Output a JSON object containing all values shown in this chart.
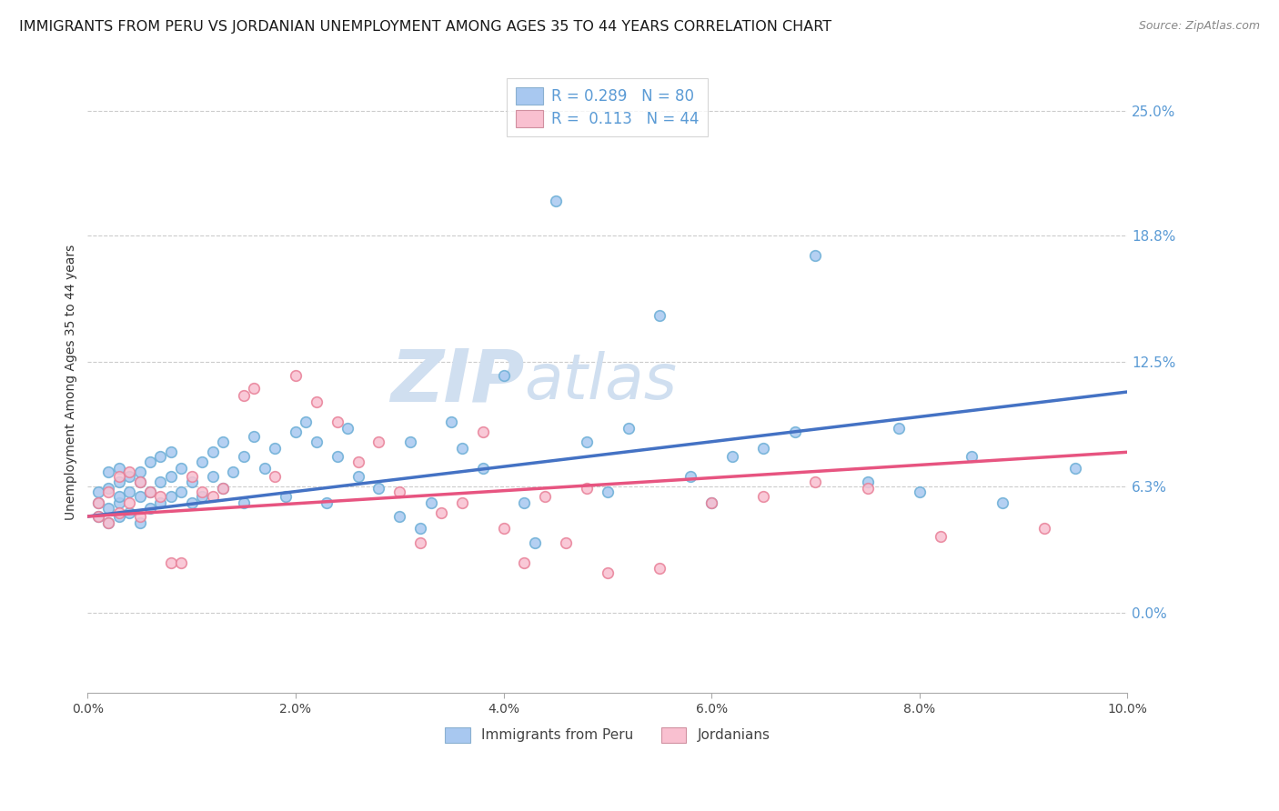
{
  "title": "IMMIGRANTS FROM PERU VS JORDANIAN UNEMPLOYMENT AMONG AGES 35 TO 44 YEARS CORRELATION CHART",
  "source": "Source: ZipAtlas.com",
  "ylabel": "Unemployment Among Ages 35 to 44 years",
  "xlim": [
    0.0,
    0.1
  ],
  "ylim": [
    -0.04,
    0.27
  ],
  "xticks": [
    0.0,
    0.02,
    0.04,
    0.06,
    0.08,
    0.1
  ],
  "xtick_labels": [
    "0.0%",
    "2.0%",
    "4.0%",
    "6.0%",
    "8.0%",
    "10.0%"
  ],
  "yticks_right": [
    0.0,
    0.063,
    0.125,
    0.188,
    0.25
  ],
  "ytick_labels_right": [
    "0.0%",
    "6.3%",
    "12.5%",
    "18.8%",
    "25.0%"
  ],
  "right_axis_color": "#5b9bd5",
  "watermark_zip": "ZIP",
  "watermark_atlas": "atlas",
  "watermark_color": "#d0dff0",
  "background_color": "#ffffff",
  "grid_color": "#cccccc",
  "title_color": "#1a1a1a",
  "title_fontsize": 11.5,
  "series_blue": {
    "dot_color": "#a8c8f0",
    "dot_edge_color": "#6baed6",
    "trend_color": "#4472c4",
    "scatter_x": [
      0.001,
      0.001,
      0.001,
      0.002,
      0.002,
      0.002,
      0.002,
      0.003,
      0.003,
      0.003,
      0.003,
      0.003,
      0.004,
      0.004,
      0.004,
      0.005,
      0.005,
      0.005,
      0.005,
      0.006,
      0.006,
      0.006,
      0.007,
      0.007,
      0.007,
      0.008,
      0.008,
      0.008,
      0.009,
      0.009,
      0.01,
      0.01,
      0.011,
      0.011,
      0.012,
      0.012,
      0.013,
      0.013,
      0.014,
      0.015,
      0.015,
      0.016,
      0.017,
      0.018,
      0.019,
      0.02,
      0.021,
      0.022,
      0.023,
      0.024,
      0.025,
      0.026,
      0.028,
      0.03,
      0.031,
      0.032,
      0.033,
      0.035,
      0.036,
      0.038,
      0.04,
      0.042,
      0.043,
      0.045,
      0.048,
      0.05,
      0.052,
      0.055,
      0.058,
      0.06,
      0.062,
      0.065,
      0.068,
      0.07,
      0.075,
      0.078,
      0.08,
      0.085,
      0.088,
      0.095
    ],
    "scatter_y": [
      0.048,
      0.055,
      0.06,
      0.045,
      0.052,
      0.062,
      0.07,
      0.048,
      0.055,
      0.065,
      0.058,
      0.072,
      0.05,
      0.06,
      0.068,
      0.045,
      0.058,
      0.07,
      0.065,
      0.052,
      0.06,
      0.075,
      0.055,
      0.065,
      0.078,
      0.058,
      0.068,
      0.08,
      0.06,
      0.072,
      0.055,
      0.065,
      0.058,
      0.075,
      0.068,
      0.08,
      0.062,
      0.085,
      0.07,
      0.078,
      0.055,
      0.088,
      0.072,
      0.082,
      0.058,
      0.09,
      0.095,
      0.085,
      0.055,
      0.078,
      0.092,
      0.068,
      0.062,
      0.048,
      0.085,
      0.042,
      0.055,
      0.095,
      0.082,
      0.072,
      0.118,
      0.055,
      0.035,
      0.205,
      0.085,
      0.06,
      0.092,
      0.148,
      0.068,
      0.055,
      0.078,
      0.082,
      0.09,
      0.178,
      0.065,
      0.092,
      0.06,
      0.078,
      0.055,
      0.072
    ],
    "trend_x": [
      0.0,
      0.1
    ],
    "trend_y": [
      0.048,
      0.11
    ]
  },
  "series_pink": {
    "dot_color": "#f9c0d0",
    "dot_edge_color": "#e88098",
    "trend_color": "#e75480",
    "scatter_x": [
      0.001,
      0.001,
      0.002,
      0.002,
      0.003,
      0.003,
      0.004,
      0.004,
      0.005,
      0.005,
      0.006,
      0.007,
      0.008,
      0.009,
      0.01,
      0.011,
      0.012,
      0.013,
      0.015,
      0.016,
      0.018,
      0.02,
      0.022,
      0.024,
      0.026,
      0.028,
      0.03,
      0.032,
      0.034,
      0.036,
      0.038,
      0.04,
      0.042,
      0.044,
      0.046,
      0.048,
      0.05,
      0.055,
      0.06,
      0.065,
      0.07,
      0.075,
      0.082,
      0.092
    ],
    "scatter_y": [
      0.048,
      0.055,
      0.045,
      0.06,
      0.05,
      0.068,
      0.055,
      0.07,
      0.048,
      0.065,
      0.06,
      0.058,
      0.025,
      0.025,
      0.068,
      0.06,
      0.058,
      0.062,
      0.108,
      0.112,
      0.068,
      0.118,
      0.105,
      0.095,
      0.075,
      0.085,
      0.06,
      0.035,
      0.05,
      0.055,
      0.09,
      0.042,
      0.025,
      0.058,
      0.035,
      0.062,
      0.02,
      0.022,
      0.055,
      0.058,
      0.065,
      0.062,
      0.038,
      0.042
    ],
    "trend_x": [
      0.0,
      0.1
    ],
    "trend_y": [
      0.048,
      0.08
    ]
  },
  "legend_top": {
    "blue_label": "R = 0.289   N = 80",
    "pink_label": "R =  0.113   N = 44",
    "blue_patch_color": "#a8c8f0",
    "pink_patch_color": "#f9c0d0",
    "text_color": "#5b9bd5",
    "N_color_blue": "#e05000",
    "N_color_pink": "#e05000"
  },
  "legend_bottom": {
    "blue_label": "Immigrants from Peru",
    "pink_label": "Jordanians",
    "blue_patch_color": "#a8c8f0",
    "pink_patch_color": "#f9c0d0"
  }
}
